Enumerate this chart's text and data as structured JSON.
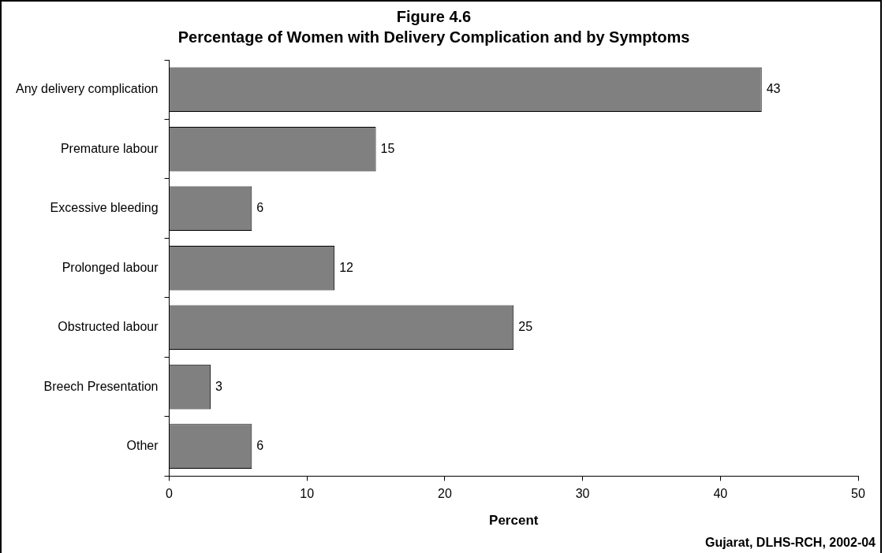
{
  "chart_data": {
    "type": "bar",
    "orientation": "horizontal",
    "title": "Figure 4.6",
    "subtitle": "Percentage of Women with Delivery Complication and by Symptoms",
    "categories": [
      "Any delivery complication",
      "Premature labour",
      "Excessive bleeding",
      "Prolonged labour",
      "Obstructed labour",
      "Breech Presentation",
      "Other"
    ],
    "values": [
      43,
      15,
      6,
      12,
      25,
      3,
      6
    ],
    "color": "#808080",
    "data_labels": true,
    "xlim": [
      0,
      50
    ],
    "xticks": [
      0,
      10,
      20,
      30,
      40,
      50
    ],
    "xlabel": "Percent",
    "grid": false,
    "legend": false,
    "annotations": [
      "Gujarat, DLHS-RCH, 2002-04"
    ]
  }
}
